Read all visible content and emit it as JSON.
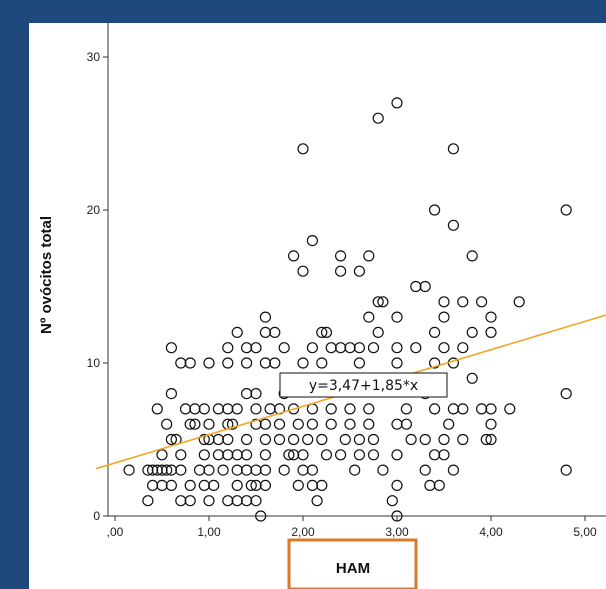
{
  "chart_data": {
    "type": "scatter",
    "xlabel": "HAM",
    "ylabel": "Nº ovócitos total",
    "xlim": [
      -0.2,
      5.2
    ],
    "ylim": [
      0,
      31
    ],
    "x_ticks": [
      0,
      1,
      2,
      3,
      4,
      5
    ],
    "x_tick_labels": [
      ",00",
      "1,00",
      "2,00",
      "3,00",
      "4,00",
      "5,00"
    ],
    "y_ticks": [
      0,
      10,
      20,
      30
    ],
    "y_tick_labels": [
      "0",
      "10",
      "20",
      "30"
    ],
    "grid": false,
    "fit_line": {
      "intercept": 3.47,
      "slope": 1.85,
      "label": "y=3,47+1,85*x",
      "color": "#f5a623"
    },
    "highlight_color": "#d97a2b",
    "points": [
      [
        3.0,
        27
      ],
      [
        2.8,
        26
      ],
      [
        2.0,
        24
      ],
      [
        3.6,
        24
      ],
      [
        3.4,
        20
      ],
      [
        3.6,
        19
      ],
      [
        4.8,
        20
      ],
      [
        2.1,
        18
      ],
      [
        1.9,
        17
      ],
      [
        2.0,
        16
      ],
      [
        2.4,
        17
      ],
      [
        2.4,
        16
      ],
      [
        2.7,
        17
      ],
      [
        2.6,
        16
      ],
      [
        3.8,
        17
      ],
      [
        2.8,
        14
      ],
      [
        2.85,
        14
      ],
      [
        3.2,
        15
      ],
      [
        3.3,
        15
      ],
      [
        3.5,
        14
      ],
      [
        3.7,
        14
      ],
      [
        3.9,
        14
      ],
      [
        4.3,
        14
      ],
      [
        1.6,
        13
      ],
      [
        2.7,
        13
      ],
      [
        3.0,
        13
      ],
      [
        3.5,
        13
      ],
      [
        4.0,
        13
      ],
      [
        1.3,
        12
      ],
      [
        1.7,
        12
      ],
      [
        1.6,
        12
      ],
      [
        2.2,
        12
      ],
      [
        2.25,
        12
      ],
      [
        2.8,
        12
      ],
      [
        3.4,
        12
      ],
      [
        3.8,
        12
      ],
      [
        4.0,
        12
      ],
      [
        0.6,
        11
      ],
      [
        1.2,
        11
      ],
      [
        1.4,
        11
      ],
      [
        1.5,
        11
      ],
      [
        1.8,
        11
      ],
      [
        2.1,
        11
      ],
      [
        2.3,
        11
      ],
      [
        2.4,
        11
      ],
      [
        2.5,
        11
      ],
      [
        2.6,
        11
      ],
      [
        2.75,
        11
      ],
      [
        3.0,
        11
      ],
      [
        3.2,
        11
      ],
      [
        3.5,
        11
      ],
      [
        3.7,
        11
      ],
      [
        0.7,
        10
      ],
      [
        0.8,
        10
      ],
      [
        1.0,
        10
      ],
      [
        1.2,
        10
      ],
      [
        1.4,
        10
      ],
      [
        1.6,
        10
      ],
      [
        1.7,
        10
      ],
      [
        2.0,
        10
      ],
      [
        2.2,
        10
      ],
      [
        2.6,
        10
      ],
      [
        3.0,
        10
      ],
      [
        3.4,
        10
      ],
      [
        3.6,
        10
      ],
      [
        0.6,
        8
      ],
      [
        1.5,
        8
      ],
      [
        1.4,
        8
      ],
      [
        1.8,
        8
      ],
      [
        3.3,
        8
      ],
      [
        3.8,
        9
      ],
      [
        4.8,
        8
      ],
      [
        0.45,
        7
      ],
      [
        0.75,
        7
      ],
      [
        0.85,
        7
      ],
      [
        0.95,
        7
      ],
      [
        1.1,
        7
      ],
      [
        1.2,
        7
      ],
      [
        1.3,
        7
      ],
      [
        1.5,
        7
      ],
      [
        1.65,
        7
      ],
      [
        1.75,
        7
      ],
      [
        1.9,
        7
      ],
      [
        2.1,
        7
      ],
      [
        2.3,
        7
      ],
      [
        2.5,
        7
      ],
      [
        2.7,
        7
      ],
      [
        3.1,
        7
      ],
      [
        3.4,
        7
      ],
      [
        3.6,
        7
      ],
      [
        3.7,
        7
      ],
      [
        3.9,
        7
      ],
      [
        4.0,
        7
      ],
      [
        4.2,
        7
      ],
      [
        0.55,
        6
      ],
      [
        0.8,
        6
      ],
      [
        0.85,
        6
      ],
      [
        1.0,
        6
      ],
      [
        1.2,
        6
      ],
      [
        1.25,
        6
      ],
      [
        1.5,
        6
      ],
      [
        1.6,
        6
      ],
      [
        1.75,
        6
      ],
      [
        1.95,
        6
      ],
      [
        2.1,
        6
      ],
      [
        2.3,
        6
      ],
      [
        2.5,
        6
      ],
      [
        2.7,
        6
      ],
      [
        3.0,
        6
      ],
      [
        3.1,
        6
      ],
      [
        3.55,
        6
      ],
      [
        4.0,
        6
      ],
      [
        0.6,
        5
      ],
      [
        0.65,
        5
      ],
      [
        0.95,
        5
      ],
      [
        1.0,
        5
      ],
      [
        1.1,
        5
      ],
      [
        1.2,
        5
      ],
      [
        1.4,
        5
      ],
      [
        1.6,
        5
      ],
      [
        1.75,
        5
      ],
      [
        1.9,
        5
      ],
      [
        2.05,
        5
      ],
      [
        2.2,
        5
      ],
      [
        2.45,
        5
      ],
      [
        2.6,
        5
      ],
      [
        2.75,
        5
      ],
      [
        3.15,
        5
      ],
      [
        3.3,
        5
      ],
      [
        3.5,
        5
      ],
      [
        3.7,
        5
      ],
      [
        3.95,
        5
      ],
      [
        4.0,
        5
      ],
      [
        0.5,
        4
      ],
      [
        0.7,
        4
      ],
      [
        0.95,
        4
      ],
      [
        1.1,
        4
      ],
      [
        1.2,
        4
      ],
      [
        1.3,
        4
      ],
      [
        1.4,
        4
      ],
      [
        1.6,
        4
      ],
      [
        1.85,
        4
      ],
      [
        1.9,
        4
      ],
      [
        2.0,
        4
      ],
      [
        2.25,
        4
      ],
      [
        2.4,
        4
      ],
      [
        2.6,
        4
      ],
      [
        2.75,
        4
      ],
      [
        3.0,
        4
      ],
      [
        3.4,
        4
      ],
      [
        3.5,
        4
      ],
      [
        0.15,
        3
      ],
      [
        0.35,
        3
      ],
      [
        0.4,
        3
      ],
      [
        0.45,
        3
      ],
      [
        0.5,
        3
      ],
      [
        0.55,
        3
      ],
      [
        0.6,
        3
      ],
      [
        0.7,
        3
      ],
      [
        0.9,
        3
      ],
      [
        1.0,
        3
      ],
      [
        1.15,
        3
      ],
      [
        1.3,
        3
      ],
      [
        1.4,
        3
      ],
      [
        1.5,
        3
      ],
      [
        1.6,
        3
      ],
      [
        1.8,
        3
      ],
      [
        2.0,
        3
      ],
      [
        2.1,
        3
      ],
      [
        2.55,
        3
      ],
      [
        2.85,
        3
      ],
      [
        3.3,
        3
      ],
      [
        3.6,
        3
      ],
      [
        4.8,
        3
      ],
      [
        0.4,
        2
      ],
      [
        0.5,
        2
      ],
      [
        0.6,
        2
      ],
      [
        0.8,
        2
      ],
      [
        0.95,
        2
      ],
      [
        1.05,
        2
      ],
      [
        1.3,
        2
      ],
      [
        1.45,
        2
      ],
      [
        1.5,
        2
      ],
      [
        1.6,
        2
      ],
      [
        1.95,
        2
      ],
      [
        2.1,
        2
      ],
      [
        2.2,
        2
      ],
      [
        3.0,
        2
      ],
      [
        3.35,
        2
      ],
      [
        3.45,
        2
      ],
      [
        0.35,
        1
      ],
      [
        0.7,
        1
      ],
      [
        0.8,
        1
      ],
      [
        1.0,
        1
      ],
      [
        1.2,
        1
      ],
      [
        1.3,
        1
      ],
      [
        1.4,
        1
      ],
      [
        1.5,
        1
      ],
      [
        2.15,
        1
      ],
      [
        2.95,
        1
      ],
      [
        1.55,
        0
      ],
      [
        3.0,
        0
      ]
    ]
  }
}
